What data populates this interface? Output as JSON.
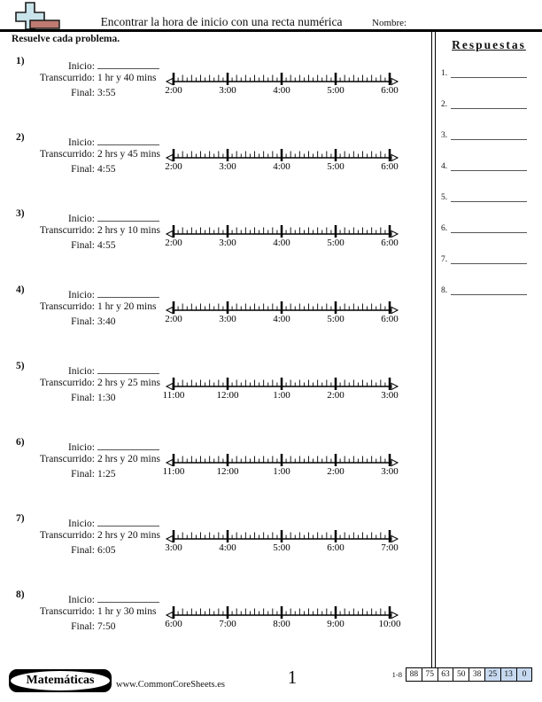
{
  "header": {
    "title": "Encontrar la hora de inicio con una recta numérica",
    "name_label": "Nombre:",
    "instruction": "Resuelve cada problema."
  },
  "labels": {
    "inicio": "Inicio:",
    "transcurrido": "Transcurrido:",
    "final": "Final:"
  },
  "answers": {
    "title": "Respuestas",
    "items": [
      "1.",
      "2.",
      "3.",
      "4.",
      "5.",
      "6.",
      "7.",
      "8."
    ]
  },
  "problems": [
    {
      "num": "1)",
      "elapsed": "1 hr y 40 mins",
      "final": "3:55",
      "timeline": [
        "2:00",
        "3:00",
        "4:00",
        "5:00",
        "6:00"
      ]
    },
    {
      "num": "2)",
      "elapsed": "2 hrs y 45 mins",
      "final": "4:55",
      "timeline": [
        "2:00",
        "3:00",
        "4:00",
        "5:00",
        "6:00"
      ]
    },
    {
      "num": "3)",
      "elapsed": "2 hrs y 10 mins",
      "final": "4:55",
      "timeline": [
        "2:00",
        "3:00",
        "4:00",
        "5:00",
        "6:00"
      ]
    },
    {
      "num": "4)",
      "elapsed": "1 hr y 20 mins",
      "final": "3:40",
      "timeline": [
        "2:00",
        "3:00",
        "4:00",
        "5:00",
        "6:00"
      ]
    },
    {
      "num": "5)",
      "elapsed": "2 hrs y 25 mins",
      "final": "1:30",
      "timeline": [
        "11:00",
        "12:00",
        "1:00",
        "2:00",
        "3:00"
      ]
    },
    {
      "num": "6)",
      "elapsed": "2 hrs y 20 mins",
      "final": "1:25",
      "timeline": [
        "11:00",
        "12:00",
        "1:00",
        "2:00",
        "3:00"
      ]
    },
    {
      "num": "7)",
      "elapsed": "2 hrs y 20 mins",
      "final": "6:05",
      "timeline": [
        "3:00",
        "4:00",
        "5:00",
        "6:00",
        "7:00"
      ]
    },
    {
      "num": "8)",
      "elapsed": "1 hr y 30 mins",
      "final": "7:50",
      "timeline": [
        "6:00",
        "7:00",
        "8:00",
        "9:00",
        "10:00"
      ]
    }
  ],
  "footer": {
    "brand": "Matemáticas",
    "site": "www.CommonCoreSheets.es",
    "page": "1",
    "score_range": "1-8",
    "score_cells": [
      {
        "value": "88",
        "highlight": false
      },
      {
        "value": "75",
        "highlight": false
      },
      {
        "value": "63",
        "highlight": false
      },
      {
        "value": "50",
        "highlight": false
      },
      {
        "value": "38",
        "highlight": false
      },
      {
        "value": "25",
        "highlight": true
      },
      {
        "value": "13",
        "highlight": true
      },
      {
        "value": "0",
        "highlight": true
      }
    ],
    "highlight_color": "#c6d9f0"
  },
  "icon_colors": {
    "cross": "#c9e4ea",
    "block": "#bf7a72"
  }
}
